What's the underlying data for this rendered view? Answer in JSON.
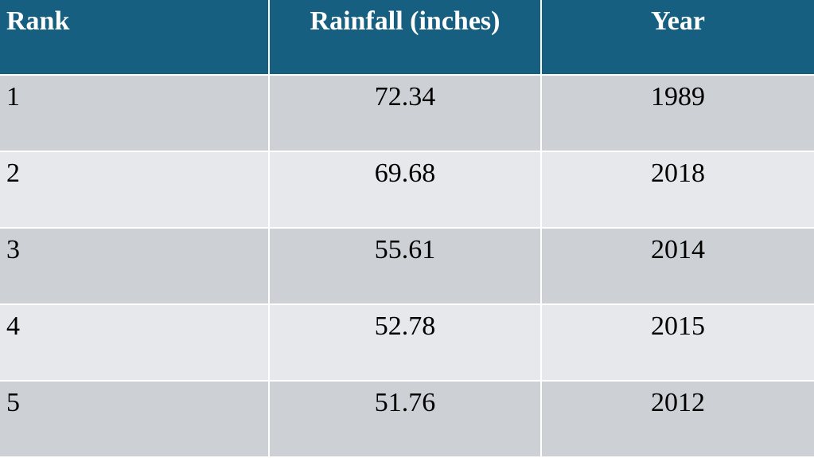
{
  "table": {
    "header": [
      "Rank",
      "Rainfall (inches)",
      "Year"
    ],
    "rows": [
      [
        1,
        72.34,
        1989
      ],
      [
        2,
        69.68,
        2018
      ],
      [
        3,
        55.61,
        2014
      ],
      [
        4,
        52.78,
        2015
      ],
      [
        5,
        51.76,
        2012
      ]
    ]
  }
}
